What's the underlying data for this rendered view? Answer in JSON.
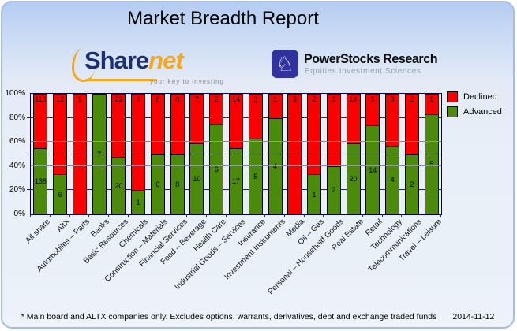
{
  "header": {
    "title": "Market Breadth Report"
  },
  "logos": {
    "sharenet": {
      "text_primary": "Share",
      "text_secondary": "net",
      "tagline": "your key to investing",
      "accent_color": "#f3a81d",
      "primary_color": "#1b2f72"
    },
    "powerstocks": {
      "name": "PowerStocks Research",
      "tagline": "Equities Investment Sciences",
      "icon": "knight-chess-icon",
      "icon_glyph": "♘",
      "box_color": "#32329e"
    }
  },
  "chart_data": {
    "type": "bar",
    "stacking": "percent",
    "title": "Market Breadth Report",
    "categories": [
      "All share",
      "AltX",
      "Automobiles – Parts",
      "Banks",
      "Basic Resources",
      "Chemicals",
      "Construction – Materials",
      "Financial Services",
      "Food – Beverage",
      "Health Care",
      "Industrial Goods – Services",
      "Insurance",
      "Investment Instruments",
      "Media",
      "Oil – Gas",
      "Personal – Household Goods",
      "Real Estate",
      "Retail",
      "Technology",
      "Telecommunications",
      "Travel – Leisure"
    ],
    "series": [
      {
        "name": "Declined",
        "color": "#fb0000",
        "values": [
          113,
          12,
          1,
          0,
          22,
          4,
          6,
          8,
          7,
          2,
          14,
          3,
          1,
          3,
          2,
          3,
          14,
          5,
          3,
          2,
          1
        ]
      },
      {
        "name": "Advanced",
        "color": "#4b8a0a",
        "values": [
          138,
          6,
          0,
          7,
          20,
          1,
          6,
          8,
          10,
          6,
          17,
          5,
          4,
          0,
          1,
          2,
          20,
          14,
          4,
          2,
          5
        ]
      }
    ],
    "y_tick_labels": [
      "100%",
      "80%",
      "60%",
      "40%",
      "20%",
      "0%"
    ],
    "ylim": [
      0,
      100
    ],
    "grid": true,
    "reference_line_pct": 50,
    "legend_position": "top-right"
  },
  "footer": {
    "note": "* Main board and ALTX companies only. Excludes options, warrants, derivatives, debt and exchange traded funds",
    "date": "2014-11-12"
  }
}
